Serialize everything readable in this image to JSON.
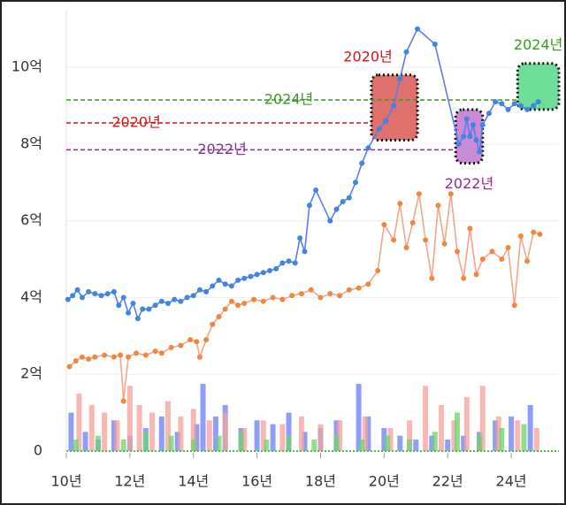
{
  "chart_data": {
    "type": "line",
    "xlim": [
      2010,
      2025.5
    ],
    "ylim": [
      0,
      11.5
    ],
    "xticks": [
      {
        "value": 2010,
        "label": "10년"
      },
      {
        "value": 2012,
        "label": "12년"
      },
      {
        "value": 2014,
        "label": "14년"
      },
      {
        "value": 2016,
        "label": "16년"
      },
      {
        "value": 2018,
        "label": "18년"
      },
      {
        "value": 2020,
        "label": "20년"
      },
      {
        "value": 2022,
        "label": "22년"
      },
      {
        "value": 2024,
        "label": "24년"
      }
    ],
    "yticks": [
      0,
      {
        "value": 2,
        "label": "2억"
      },
      {
        "value": 4,
        "label": "4억"
      },
      {
        "value": 6,
        "label": "6억"
      },
      {
        "value": 8,
        "label": "8억"
      },
      {
        "value": 10,
        "label": "10억"
      }
    ],
    "grid": true,
    "series": [
      {
        "color": "#5b7cf0",
        "point_color": "#3f86e0",
        "x": [
          2010.05,
          2010.2,
          2010.35,
          2010.5,
          2010.7,
          2010.9,
          2011.1,
          2011.3,
          2011.5,
          2011.65,
          2011.8,
          2011.95,
          2012.1,
          2012.25,
          2012.4,
          2012.6,
          2012.8,
          2013.0,
          2013.2,
          2013.4,
          2013.6,
          2013.8,
          2014.0,
          2014.2,
          2014.4,
          2014.6,
          2014.8,
          2015.0,
          2015.2,
          2015.4,
          2015.6,
          2015.8,
          2016.0,
          2016.2,
          2016.4,
          2016.6,
          2016.8,
          2017.0,
          2017.2,
          2017.35,
          2017.5,
          2017.65,
          2017.85,
          2018.3,
          2018.5,
          2018.7,
          2018.9,
          2019.1,
          2019.3,
          2019.5,
          2019.85,
          2020.05,
          2020.3,
          2020.5,
          2020.7,
          2021.05,
          2021.6,
          2022.35,
          2022.5,
          2022.6,
          2022.7,
          2022.8,
          2022.9,
          2023.0,
          2023.1,
          2023.3,
          2023.5,
          2023.7,
          2023.9,
          2024.1,
          2024.3,
          2024.5,
          2024.7,
          2024.85
        ],
        "values": [
          3.95,
          4.05,
          4.2,
          4.0,
          4.15,
          4.1,
          4.05,
          4.1,
          4.15,
          3.8,
          4.0,
          3.6,
          3.85,
          3.45,
          3.7,
          3.7,
          3.8,
          3.9,
          3.85,
          3.95,
          3.9,
          4.0,
          4.05,
          4.2,
          4.15,
          4.3,
          4.45,
          4.35,
          4.3,
          4.45,
          4.5,
          4.55,
          4.6,
          4.65,
          4.7,
          4.75,
          4.9,
          4.95,
          4.9,
          5.55,
          5.2,
          6.4,
          6.8,
          6.0,
          6.3,
          6.5,
          6.6,
          7.0,
          7.5,
          7.9,
          8.4,
          8.6,
          9.0,
          9.7,
          10.4,
          11.0,
          10.6,
          8.0,
          8.2,
          8.65,
          8.2,
          8.5,
          8.1,
          7.8,
          8.5,
          8.8,
          9.1,
          9.05,
          8.9,
          9.05,
          9.0,
          8.9,
          9.0,
          9.1
        ]
      },
      {
        "color": "#f4a58a",
        "point_color": "#f0883c",
        "x": [
          2010.1,
          2010.3,
          2010.5,
          2010.7,
          2010.9,
          2011.2,
          2011.5,
          2011.7,
          2011.8,
          2011.95,
          2012.2,
          2012.5,
          2012.8,
          2013.0,
          2013.3,
          2013.6,
          2013.9,
          2014.1,
          2014.2,
          2014.4,
          2014.6,
          2014.8,
          2015.0,
          2015.2,
          2015.4,
          2015.6,
          2015.9,
          2016.2,
          2016.5,
          2016.8,
          2017.1,
          2017.4,
          2017.7,
          2018.0,
          2018.3,
          2018.6,
          2018.9,
          2019.2,
          2019.5,
          2019.8,
          2020.0,
          2020.3,
          2020.5,
          2020.7,
          2020.9,
          2021.1,
          2021.3,
          2021.5,
          2021.7,
          2021.9,
          2022.1,
          2022.3,
          2022.5,
          2022.7,
          2022.9,
          2023.1,
          2023.4,
          2023.7,
          2023.9,
          2024.1,
          2024.3,
          2024.5,
          2024.7,
          2024.9
        ],
        "values": [
          2.2,
          2.35,
          2.45,
          2.4,
          2.45,
          2.5,
          2.45,
          2.5,
          1.3,
          2.45,
          2.55,
          2.5,
          2.6,
          2.55,
          2.7,
          2.75,
          2.9,
          2.85,
          2.45,
          2.9,
          3.3,
          3.5,
          3.7,
          3.9,
          3.8,
          3.85,
          3.95,
          3.9,
          4.0,
          3.95,
          4.05,
          4.1,
          4.2,
          4.0,
          4.1,
          4.05,
          4.2,
          4.25,
          4.35,
          4.7,
          5.9,
          5.5,
          6.45,
          5.3,
          5.95,
          6.7,
          5.5,
          4.5,
          6.4,
          5.4,
          6.7,
          5.2,
          4.5,
          5.8,
          4.6,
          5.0,
          5.2,
          5.0,
          5.3,
          3.8,
          5.6,
          4.95,
          5.7,
          5.65
        ]
      }
    ],
    "bars": [
      {
        "color": "#6a7ef5",
        "x": [
          2010.15,
          2010.6,
          2011.0,
          2011.5,
          2012.0,
          2012.5,
          2013.0,
          2013.5,
          2014.1,
          2014.3,
          2014.7,
          2015.0,
          2015.5,
          2016.0,
          2016.5,
          2017.0,
          2017.5,
          2018.0,
          2018.5,
          2019.2,
          2019.5,
          2020.0,
          2020.5,
          2021.0,
          2021.5,
          2022.0,
          2022.5,
          2023.0,
          2023.5,
          2024.0,
          2024.6
        ],
        "values": [
          1.0,
          0.5,
          0.3,
          0.8,
          0.4,
          0.6,
          0.9,
          0.5,
          0.7,
          1.75,
          0.9,
          1.2,
          0.6,
          0.8,
          0.7,
          1.0,
          0.5,
          0.6,
          0.8,
          1.75,
          0.9,
          0.6,
          0.4,
          0.3,
          0.4,
          0.3,
          0.4,
          0.5,
          0.8,
          0.9,
          1.2
        ]
      },
      {
        "color": "#f4a09a",
        "x": [
          2010.4,
          2010.8,
          2011.2,
          2011.6,
          2012.0,
          2012.3,
          2012.7,
          2013.2,
          2013.6,
          2014.0,
          2014.5,
          2015.0,
          2015.6,
          2016.2,
          2016.8,
          2017.4,
          2018.0,
          2018.6,
          2019.4,
          2020.2,
          2020.8,
          2021.3,
          2021.8,
          2022.2,
          2022.6,
          2023.1,
          2023.6,
          2024.2,
          2024.8
        ],
        "values": [
          1.5,
          1.2,
          1.0,
          0.8,
          1.7,
          1.2,
          1.0,
          1.3,
          0.9,
          1.1,
          0.8,
          1.0,
          0.6,
          0.8,
          0.7,
          0.9,
          0.7,
          0.8,
          0.9,
          0.6,
          0.8,
          1.7,
          1.2,
          0.8,
          1.4,
          1.7,
          0.9,
          0.8,
          0.6
        ]
      },
      {
        "color": "#6cd36c",
        "x": [
          2010.3,
          2011.0,
          2011.8,
          2012.5,
          2013.3,
          2014.0,
          2014.8,
          2015.5,
          2016.3,
          2017.0,
          2017.8,
          2018.5,
          2019.3,
          2020.1,
          2020.8,
          2021.6,
          2022.3,
          2023.0,
          2023.7,
          2024.4
        ],
        "values": [
          0.3,
          0.4,
          0.3,
          0.5,
          0.4,
          0.3,
          0.4,
          0.5,
          0.3,
          0.4,
          0.3,
          0.4,
          0.3,
          0.4,
          0.3,
          0.5,
          1.0,
          0.4,
          0.6,
          0.7
        ]
      }
    ],
    "reference_lines": [
      {
        "label": "2024년",
        "value": 9.15,
        "end": 2024.2,
        "color": "#3a9a20"
      },
      {
        "label": "2020년",
        "value": 8.55,
        "end": 2019.6,
        "color": "#d81414"
      },
      {
        "label": "2022년",
        "value": 7.85,
        "end": 2022.25,
        "color": "#8e2a96"
      }
    ],
    "highlights": [
      {
        "label": "2020년",
        "xlim": [
          2019.6,
          2021.05
        ],
        "ylim": [
          8.1,
          9.8
        ],
        "color": "#e0706e",
        "label_color": "#d81414"
      },
      {
        "label": "2022년",
        "xlim": [
          2022.25,
          2023.1
        ],
        "ylim": [
          7.5,
          8.9
        ],
        "color": "#c98ad6",
        "label_color": "#8e2a96"
      },
      {
        "label": "2024년",
        "xlim": [
          2024.2,
          2025.5
        ],
        "ylim": [
          8.9,
          10.1
        ],
        "color": "#6fdc9a",
        "label_color": "#3a9a20"
      }
    ]
  }
}
